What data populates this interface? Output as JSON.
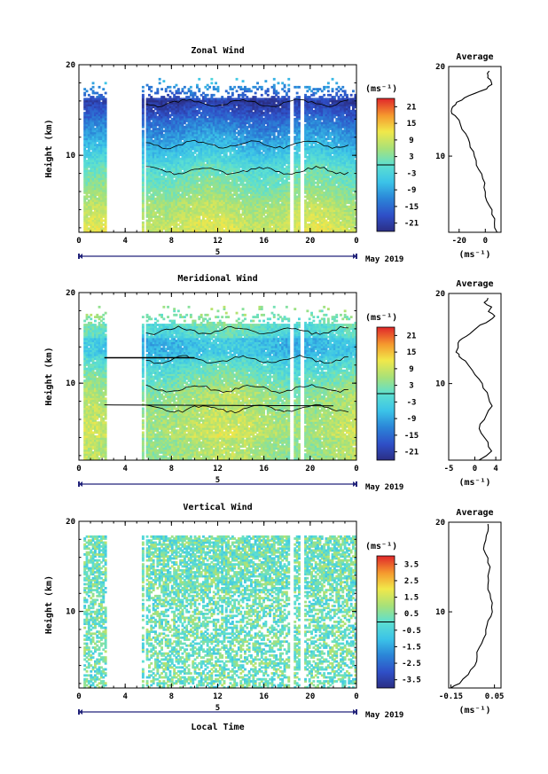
{
  "chart_data": [
    {
      "type": "heatmap",
      "title": "Zonal Wind",
      "ylabel": "Height (km)",
      "xlabel": "",
      "x_ticks": [
        "0",
        "4",
        "8",
        "12",
        "16",
        "20",
        "0"
      ],
      "y_ticks": [
        "10",
        "20"
      ],
      "xlim": [
        0,
        24
      ],
      "ylim": [
        1.5,
        20
      ],
      "date_label": "5",
      "month_label": "May 2019",
      "colorbar": {
        "unit": "(ms⁻¹)",
        "labels": [
          "21",
          "15",
          "9",
          "3",
          "-3",
          "-9",
          "-15",
          "-21"
        ],
        "range": [
          -24,
          24
        ]
      },
      "gaps": [
        [
          1.0,
          1.1
        ],
        [
          2.2,
          5.3
        ],
        [
          5.6,
          5.7
        ],
        [
          18.2,
          18.5
        ],
        [
          19.1,
          19.4
        ]
      ],
      "profile": {
        "title": "Average",
        "xlabel": "(ms⁻¹)",
        "x_ticks": [
          "-20",
          "0"
        ],
        "y_ticks": [
          "10",
          "20"
        ],
        "xlim": [
          -28,
          12
        ],
        "heights": [
          1.5,
          2.5,
          3.5,
          4.5,
          5.5,
          6.5,
          7.5,
          8.5,
          9.5,
          10.5,
          11.5,
          12.5,
          13.5,
          14.5,
          15.0,
          15.5,
          16.0,
          16.5,
          17.0,
          17.5,
          18.0,
          18.5,
          19.0,
          19.5
        ],
        "values": [
          9,
          7,
          5,
          3,
          0,
          -1,
          -2,
          -5,
          -7,
          -9,
          -12,
          -15,
          -19,
          -23,
          -26,
          -25,
          -22,
          -16,
          -8,
          1,
          5,
          4,
          2,
          3
        ]
      }
    },
    {
      "type": "heatmap",
      "title": "Meridional Wind",
      "ylabel": "Height (km)",
      "xlabel": "",
      "x_ticks": [
        "0",
        "4",
        "8",
        "12",
        "16",
        "20",
        "0"
      ],
      "y_ticks": [
        "10",
        "20"
      ],
      "xlim": [
        0,
        24
      ],
      "ylim": [
        1.5,
        20
      ],
      "date_label": "5",
      "month_label": "May 2019",
      "colorbar": {
        "unit": "(ms⁻¹)",
        "labels": [
          "21",
          "15",
          "9",
          "3",
          "-3",
          "-9",
          "-15",
          "-21"
        ],
        "range": [
          -24,
          24
        ]
      },
      "gaps": [
        [
          1.0,
          1.1
        ],
        [
          2.2,
          5.3
        ],
        [
          5.6,
          5.7
        ],
        [
          18.2,
          18.5
        ],
        [
          19.1,
          19.4
        ]
      ],
      "profile": {
        "title": "Average",
        "xlabel": "(ms⁻¹)",
        "x_ticks": [
          "-5",
          "0",
          "4"
        ],
        "y_ticks": [
          "10",
          "20"
        ],
        "xlim": [
          -5,
          5
        ],
        "heights": [
          1.5,
          2.5,
          3.5,
          4.5,
          5.5,
          6.5,
          7.5,
          8.5,
          9.5,
          10.5,
          11.5,
          12.5,
          13.0,
          13.5,
          14.5,
          15.0,
          15.5,
          16.5,
          17.0,
          17.5,
          18.0,
          18.5,
          19.0,
          19.5
        ],
        "values": [
          0.8,
          3.2,
          2.5,
          1.2,
          1.0,
          2.2,
          3.3,
          2.6,
          1.6,
          0.8,
          -0.5,
          -1.8,
          -3.0,
          -3.6,
          -3.2,
          -2.4,
          -1.0,
          1.0,
          2.8,
          3.8,
          2.6,
          3.2,
          1.8,
          2.5
        ]
      }
    },
    {
      "type": "heatmap",
      "title": "Vertical Wind",
      "ylabel": "Height (km)",
      "xlabel": "Local Time",
      "x_ticks": [
        "0",
        "4",
        "8",
        "12",
        "16",
        "20",
        "0"
      ],
      "y_ticks": [
        "10",
        "20"
      ],
      "xlim": [
        0,
        24
      ],
      "ylim": [
        1.5,
        20
      ],
      "date_label": "5",
      "month_label": "May 2019",
      "colorbar": {
        "unit": "(ms⁻¹)",
        "labels": [
          "3.5",
          "2.5",
          "1.5",
          "0.5",
          "-0.5",
          "-1.5",
          "-2.5",
          "-3.5"
        ],
        "range": [
          -4,
          4
        ]
      },
      "gaps": [
        [
          1.0,
          1.1
        ],
        [
          2.2,
          5.3
        ],
        [
          5.6,
          5.7
        ],
        [
          18.2,
          18.5
        ],
        [
          19.1,
          19.4
        ]
      ],
      "profile": {
        "title": "Average",
        "xlabel": "(ms⁻¹)",
        "x_ticks": [
          "-0.15",
          "0.05"
        ],
        "y_ticks": [
          "10",
          "20"
        ],
        "xlim": [
          -0.16,
          0.08
        ],
        "heights": [
          1.5,
          2.0,
          3.0,
          4.0,
          5.0,
          6.0,
          7.0,
          8.0,
          9.0,
          10.0,
          11.0,
          12.0,
          13.0,
          14.0,
          15.0,
          16.0,
          17.0,
          18.0,
          19.0,
          19.8
        ],
        "values": [
          -0.15,
          -0.11,
          -0.07,
          -0.04,
          -0.03,
          -0.02,
          0.0,
          0.01,
          0.02,
          0.04,
          0.04,
          0.03,
          0.02,
          0.02,
          0.03,
          0.02,
          0.0,
          0.01,
          0.02,
          0.02
        ]
      }
    }
  ]
}
